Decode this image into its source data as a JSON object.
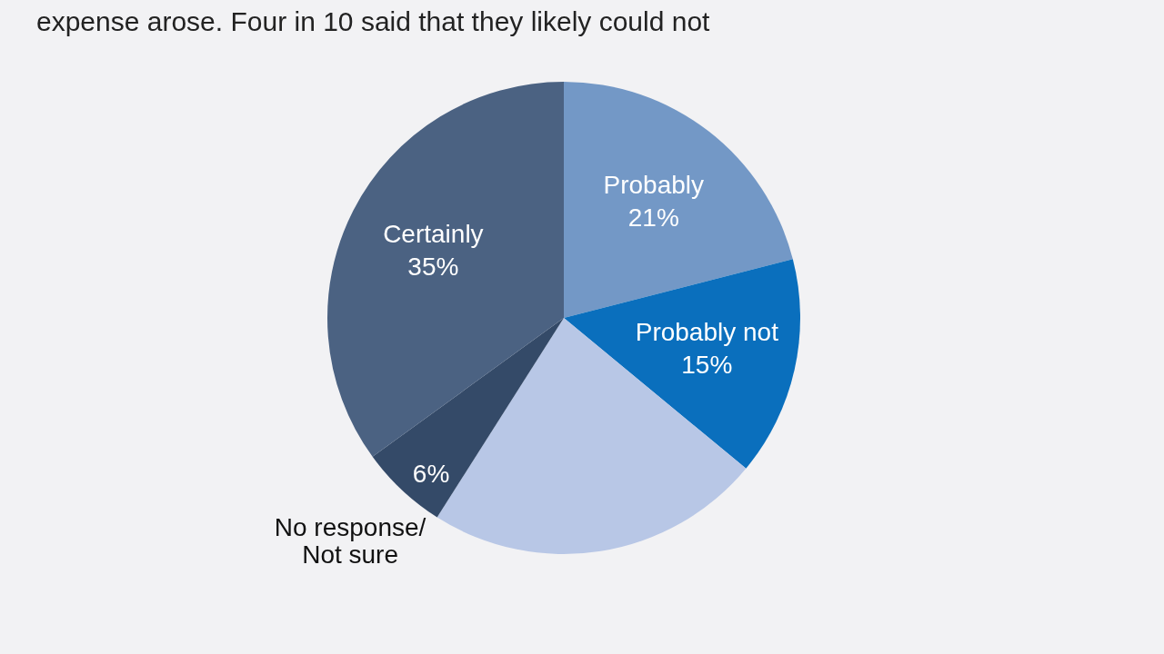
{
  "chart_data": {
    "type": "pie",
    "title": "expense arose. Four in 10 said that they likely could not",
    "categories": [
      "Probably",
      "Probably not",
      null,
      "No response/\nNot sure",
      "Certainly"
    ],
    "values": [
      21,
      15,
      23,
      6,
      35
    ],
    "colors": [
      "#7398c6",
      "#0a6fbd",
      "#b8c7e6",
      "#344a68",
      "#4b6282"
    ],
    "value_labels": [
      "21%",
      "15%",
      null,
      "6%",
      "35%"
    ],
    "legend": false
  }
}
